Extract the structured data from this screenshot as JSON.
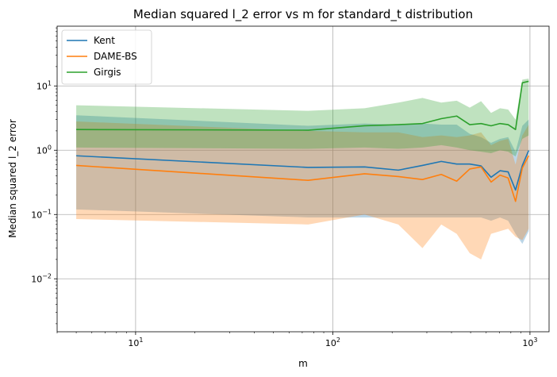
{
  "chart_data": {
    "type": "line",
    "title": "Median squared l_2 error vs m for standard_t distribution",
    "xlabel": "m",
    "ylabel": "Median squared l_2 error",
    "xscale": "log",
    "yscale": "log",
    "xlim": [
      4.0,
      1250
    ],
    "ylim": [
      0.0015,
      85
    ],
    "grid": true,
    "legend_position": "top-left",
    "x_ticks": [
      {
        "value": 10,
        "base": "10",
        "exp": "1"
      },
      {
        "value": 100,
        "base": "10",
        "exp": "2"
      },
      {
        "value": 1000,
        "base": "10",
        "exp": "3"
      }
    ],
    "y_ticks": [
      {
        "value": 0.01,
        "base": "10",
        "exp": "−2"
      },
      {
        "value": 0.1,
        "base": "10",
        "exp": "−1"
      },
      {
        "value": 1,
        "base": "10",
        "exp": "0"
      },
      {
        "value": 10,
        "base": "10",
        "exp": "1"
      }
    ],
    "x": [
      5,
      75,
      145,
      215,
      285,
      355,
      425,
      495,
      565,
      635,
      705,
      775,
      845,
      915,
      985
    ],
    "series": [
      {
        "name": "Kent",
        "color": "#1f77b4",
        "values": [
          0.82,
          0.54,
          0.55,
          0.49,
          0.58,
          0.67,
          0.61,
          0.61,
          0.57,
          0.38,
          0.48,
          0.46,
          0.24,
          0.58,
          0.99
        ],
        "lower": [
          0.12,
          0.09,
          0.09,
          0.09,
          0.09,
          0.09,
          0.09,
          0.09,
          0.09,
          0.08,
          0.09,
          0.08,
          0.05,
          0.035,
          0.055
        ],
        "upper": [
          3.5,
          2.4,
          2.6,
          2.5,
          2.6,
          2.5,
          2.5,
          1.8,
          1.6,
          1.3,
          1.5,
          1.6,
          0.95,
          2.4,
          3.0
        ]
      },
      {
        "name": "DAME-BS",
        "color": "#ff7f0e",
        "values": [
          0.58,
          0.34,
          0.43,
          0.39,
          0.35,
          0.42,
          0.33,
          0.51,
          0.55,
          0.32,
          0.41,
          0.37,
          0.16,
          0.53,
          0.82
        ],
        "lower": [
          0.085,
          0.07,
          0.1,
          0.07,
          0.03,
          0.07,
          0.05,
          0.025,
          0.02,
          0.05,
          0.055,
          0.06,
          0.045,
          0.04,
          0.06
        ],
        "upper": [
          2.8,
          2.0,
          1.9,
          1.9,
          1.6,
          1.7,
          1.6,
          1.7,
          1.9,
          1.2,
          1.4,
          1.5,
          0.6,
          1.7,
          2.5
        ]
      },
      {
        "name": "Girgis",
        "color": "#2ca02c",
        "values": [
          2.1,
          2.05,
          2.4,
          2.5,
          2.6,
          3.1,
          3.4,
          2.5,
          2.6,
          2.4,
          2.6,
          2.5,
          2.1,
          11.2,
          11.8
        ],
        "lower": [
          1.1,
          1.05,
          1.1,
          1.05,
          1.1,
          1.2,
          1.1,
          1.0,
          0.95,
          0.9,
          1.0,
          0.95,
          0.8,
          1.5,
          1.7
        ],
        "upper": [
          5.0,
          4.1,
          4.5,
          5.5,
          6.5,
          5.5,
          5.9,
          4.6,
          5.8,
          3.8,
          4.5,
          4.3,
          3.0,
          12.5,
          13.0
        ]
      }
    ]
  }
}
